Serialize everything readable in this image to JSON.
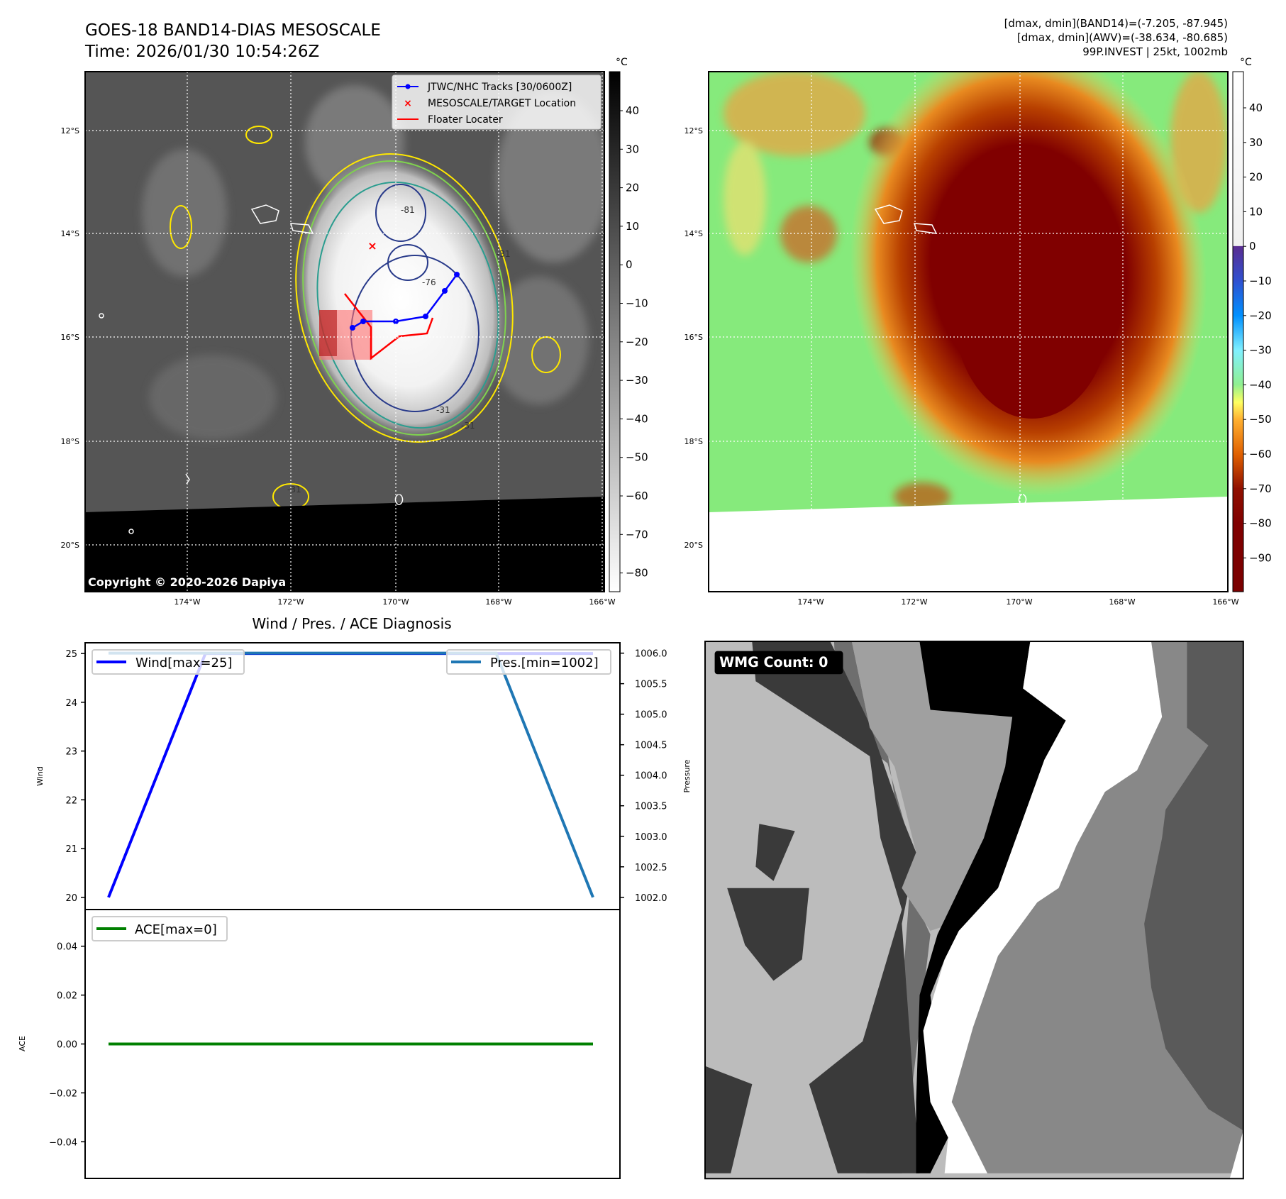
{
  "header": {
    "title_line1": "GOES-18 BAND14-DIAS MESOSCALE",
    "title_line2": "Time: 2026/01/30 10:54:26Z",
    "stats_line1": "[dmax, dmin](BAND14)=(-7.205, -87.945)",
    "stats_line2": "[dmax, dmin](AWV)=(-38.634, -80.685)",
    "stats_line3": "99P.INVEST | 25kt, 1002mb"
  },
  "map": {
    "lat_labels": [
      "12°S",
      "14°S",
      "16°S",
      "18°S",
      "20°S"
    ],
    "lon_labels": [
      "174°W",
      "172°W",
      "170°W",
      "168°W",
      "166°W"
    ],
    "legend": [
      "JTWC/NHC Tracks [30/0600Z]",
      "MESOSCALE/TARGET Location",
      "Floater Locater"
    ],
    "contour_labels": [
      "-31",
      "-31",
      "-31",
      "-31",
      "-76",
      "-81"
    ],
    "copyright": "Copyright © 2020-2026 Dapiya",
    "colors": {
      "track": "#0000ff",
      "floater": "#ff0000",
      "target": "#ff0000"
    }
  },
  "colorbar_left": {
    "unit": "°C",
    "ticks": [
      "40",
      "30",
      "20",
      "10",
      "0",
      "−10",
      "−20",
      "−30",
      "−40",
      "−50",
      "−60",
      "−70",
      "−80"
    ]
  },
  "colorbar_right": {
    "unit": "°C",
    "ticks": [
      "40",
      "30",
      "20",
      "10",
      "0",
      "−10",
      "−20",
      "−30",
      "−40",
      "−50",
      "−60",
      "−70",
      "−80",
      "−90"
    ]
  },
  "wmg": {
    "label": "WMG Count: 0"
  },
  "chart_data": [
    {
      "type": "line",
      "title": "Wind / Pres. / ACE Diagnosis",
      "x": [
        0,
        1,
        2,
        3,
        4,
        5
      ],
      "series": [
        {
          "name": "Wind[max=25]",
          "axis": "left",
          "color": "#0000ff",
          "values": [
            20,
            25,
            25,
            25,
            25,
            25
          ]
        },
        {
          "name": "Pres.[min=1002]",
          "axis": "right",
          "color": "#1f77b4",
          "values": [
            1006,
            1006,
            1006,
            1006,
            1006,
            1002
          ]
        }
      ],
      "ylabel": "Wind",
      "ylabel_right": "Pressure",
      "ylim": [
        19.75,
        25.22
      ],
      "ylim_right": [
        1001.8,
        1006.17
      ],
      "yticks": [
        "20",
        "21",
        "22",
        "23",
        "24",
        "25"
      ],
      "yticks_right": [
        "1002.0",
        "1002.5",
        "1003.0",
        "1003.5",
        "1004.0",
        "1004.5",
        "1005.0",
        "1005.5",
        "1006.0"
      ],
      "legend": [
        "top-left",
        "top-right"
      ]
    },
    {
      "type": "line",
      "x": [
        0,
        1,
        2,
        3,
        4,
        5
      ],
      "series": [
        {
          "name": "ACE[max=0]",
          "color": "#008000",
          "values": [
            0,
            0,
            0,
            0,
            0,
            0
          ]
        }
      ],
      "ylabel": "ACE",
      "ylim": [
        -0.055,
        0.055
      ],
      "yticks": [
        "−0.04",
        "−0.02",
        "0.00",
        "0.02",
        "0.04"
      ],
      "legend": "top-left"
    }
  ]
}
